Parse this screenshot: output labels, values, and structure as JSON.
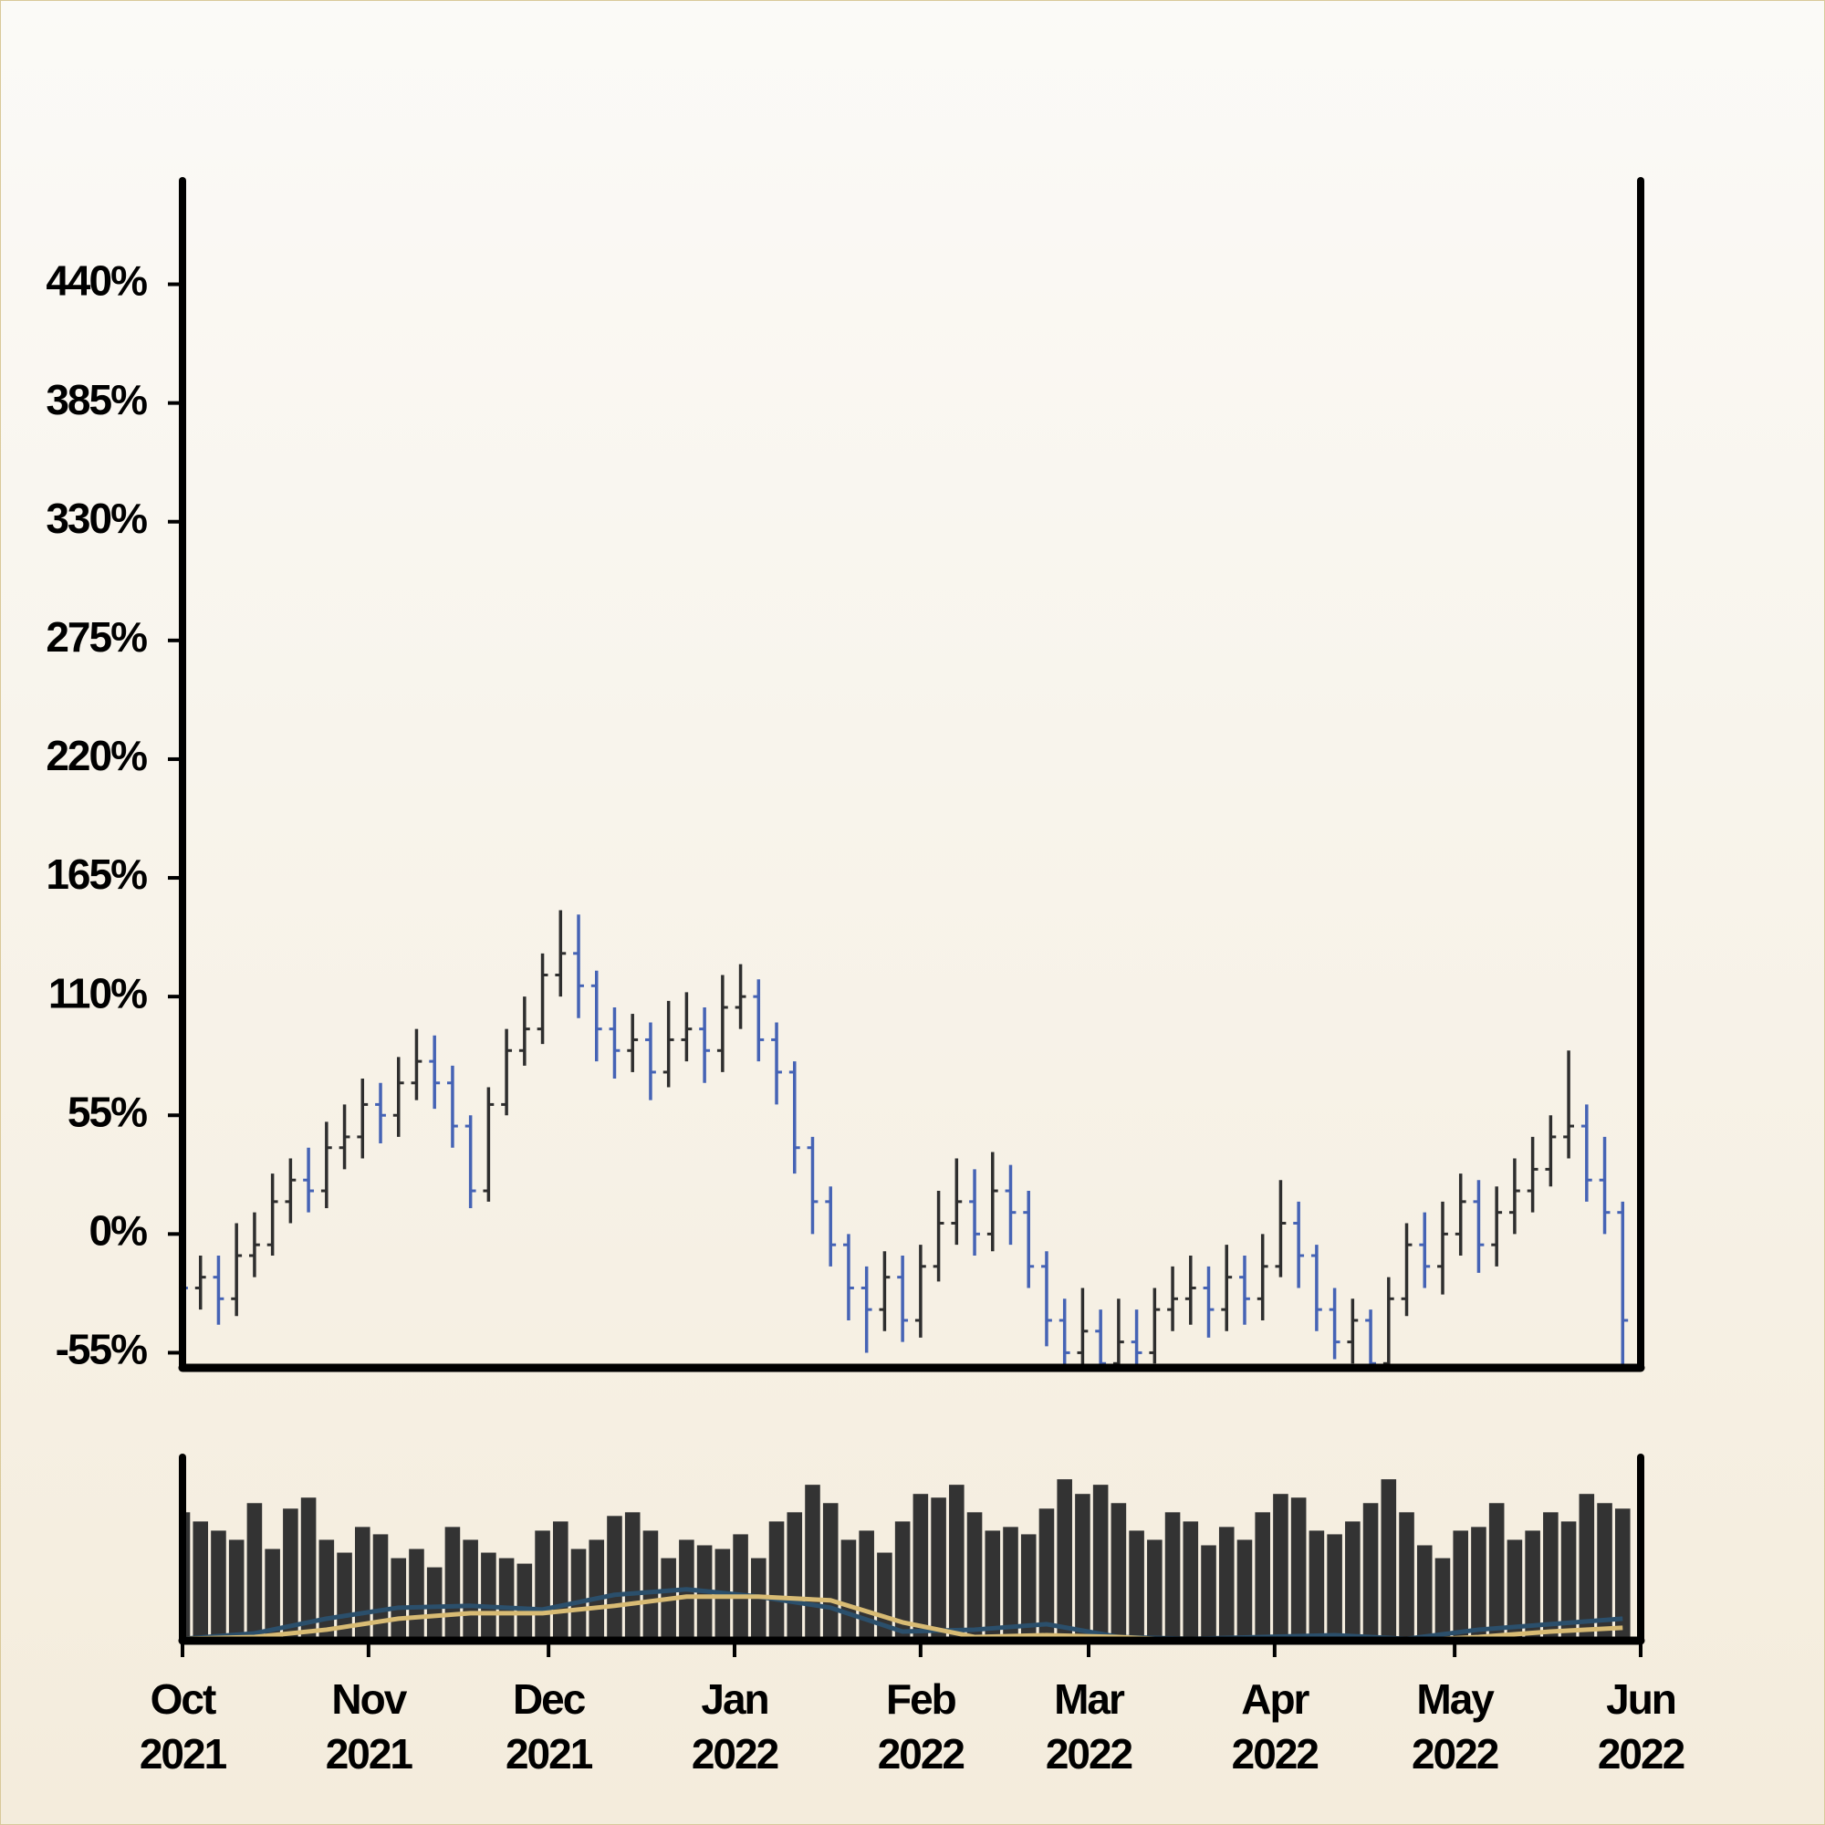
{
  "chart_data": {
    "type": "ohlc",
    "x": [
      0,
      3,
      6,
      9,
      12,
      15,
      18,
      21,
      24,
      27,
      30,
      33,
      36,
      39,
      42,
      45,
      48,
      51,
      54,
      57,
      60,
      63,
      66,
      69,
      72,
      75,
      78,
      81,
      84,
      87,
      90,
      93,
      96,
      99,
      102,
      105,
      108,
      111,
      114,
      117,
      120,
      123,
      126,
      129,
      132,
      135,
      138,
      141,
      144,
      147,
      150,
      153,
      156,
      159,
      162,
      165,
      168,
      171,
      174,
      177,
      180,
      183,
      186,
      189,
      192,
      195,
      198,
      201,
      204,
      207,
      210,
      213,
      216,
      219,
      222,
      225,
      228,
      231,
      234,
      237,
      240
    ],
    "open": [
      -15,
      -25,
      -20,
      -30,
      -10,
      -5,
      15,
      25,
      20,
      40,
      45,
      60,
      55,
      70,
      80,
      70,
      50,
      20,
      60,
      85,
      95,
      120,
      130,
      115,
      95,
      85,
      90,
      75,
      90,
      95,
      85,
      105,
      110,
      90,
      75,
      40,
      15,
      -5,
      -25,
      -35,
      -20,
      -40,
      -15,
      5,
      15,
      0,
      20,
      10,
      -15,
      -40,
      -55,
      -45,
      -60,
      -50,
      -55,
      -35,
      -30,
      -25,
      -35,
      -20,
      -30,
      -15,
      5,
      -10,
      -35,
      -50,
      -40,
      -60,
      -30,
      -5,
      -15,
      0,
      15,
      -5,
      10,
      20,
      30,
      45,
      50,
      25,
      10
    ],
    "high": [
      -3,
      -10,
      -10,
      5,
      10,
      28,
      35,
      40,
      52,
      60,
      72,
      70,
      82,
      95,
      92,
      78,
      55,
      68,
      95,
      110,
      130,
      150,
      148,
      122,
      105,
      102,
      98,
      108,
      112,
      105,
      120,
      125,
      118,
      98,
      80,
      45,
      22,
      0,
      -15,
      -8,
      -10,
      -5,
      20,
      35,
      30,
      38,
      32,
      20,
      -8,
      -30,
      -25,
      -35,
      -30,
      -35,
      -25,
      -15,
      -10,
      -15,
      -5,
      -10,
      0,
      25,
      15,
      -5,
      -25,
      -30,
      -35,
      -20,
      5,
      10,
      15,
      28,
      25,
      22,
      35,
      45,
      55,
      85,
      60,
      45,
      15
    ],
    "low": [
      -40,
      -35,
      -42,
      -38,
      -20,
      -10,
      5,
      10,
      12,
      30,
      35,
      42,
      45,
      62,
      58,
      40,
      12,
      15,
      55,
      78,
      88,
      110,
      100,
      80,
      72,
      75,
      62,
      68,
      80,
      70,
      75,
      95,
      80,
      60,
      28,
      0,
      -15,
      -40,
      -55,
      -45,
      -50,
      -48,
      -22,
      -5,
      -10,
      -8,
      -5,
      -25,
      -52,
      -62,
      -62,
      -62,
      -62,
      -62,
      -60,
      -45,
      -42,
      -48,
      -45,
      -42,
      -40,
      -20,
      -25,
      -45,
      -58,
      -60,
      -62,
      -62,
      -38,
      -25,
      -28,
      -10,
      -18,
      -15,
      0,
      10,
      22,
      35,
      15,
      0,
      -62
    ],
    "close": [
      -25,
      -20,
      -30,
      -10,
      -5,
      15,
      25,
      20,
      40,
      45,
      60,
      55,
      70,
      80,
      70,
      50,
      20,
      60,
      85,
      95,
      120,
      130,
      115,
      95,
      85,
      90,
      75,
      90,
      95,
      85,
      105,
      110,
      90,
      75,
      40,
      15,
      -5,
      -25,
      -35,
      -20,
      -40,
      -15,
      5,
      15,
      0,
      20,
      10,
      -15,
      -40,
      -55,
      -45,
      -60,
      -50,
      -55,
      -35,
      -30,
      -25,
      -35,
      -20,
      -30,
      -15,
      5,
      -10,
      -35,
      -50,
      -40,
      -60,
      -30,
      -5,
      -15,
      0,
      15,
      -5,
      10,
      20,
      30,
      45,
      50,
      25,
      10,
      -40
    ],
    "up_color": "#2e2e2e",
    "down_color": "#4563b5",
    "xlim": [
      0,
      243
    ],
    "xticks": [
      {
        "value": 0,
        "label": "Oct 2021"
      },
      {
        "value": 31,
        "label": "Nov 2021"
      },
      {
        "value": 61,
        "label": "Dec 2021"
      },
      {
        "value": 92,
        "label": "Jan 2022"
      },
      {
        "value": 123,
        "label": "Feb 2022"
      },
      {
        "value": 151,
        "label": "Mar 2022"
      },
      {
        "value": 182,
        "label": "Apr 2022"
      },
      {
        "value": 212,
        "label": "May 2022"
      },
      {
        "value": 243,
        "label": "Jun 2022"
      }
    ],
    "ylim": [
      -62,
      488
    ],
    "yticks": [
      {
        "value": -55,
        "label": "-55%"
      },
      {
        "value": 0,
        "label": "0%"
      },
      {
        "value": 55,
        "label": "55%"
      },
      {
        "value": 110,
        "label": "110%"
      },
      {
        "value": 165,
        "label": "165%"
      },
      {
        "value": 220,
        "label": "220%"
      },
      {
        "value": 275,
        "label": "275%"
      },
      {
        "value": 330,
        "label": "330%"
      },
      {
        "value": 385,
        "label": "385%"
      },
      {
        "value": 440,
        "label": "440%"
      }
    ],
    "volume": {
      "color": "#333333",
      "ylim": [
        0,
        100
      ],
      "values": [
        70,
        65,
        60,
        55,
        75,
        50,
        72,
        78,
        55,
        48,
        62,
        58,
        45,
        50,
        40,
        62,
        55,
        48,
        45,
        42,
        60,
        65,
        50,
        55,
        68,
        70,
        60,
        45,
        55,
        52,
        50,
        58,
        45,
        65,
        70,
        85,
        75,
        55,
        60,
        48,
        65,
        80,
        78,
        85,
        70,
        60,
        62,
        58,
        72,
        88,
        80,
        85,
        75,
        60,
        55,
        70,
        65,
        52,
        62,
        55,
        70,
        80,
        78,
        60,
        58,
        65,
        75,
        88,
        70,
        52,
        45,
        60,
        62,
        75,
        55,
        60,
        70,
        65,
        80,
        75,
        72
      ]
    },
    "moving_averages": [
      {
        "color": "#2b4f6b",
        "x": [
          0,
          12,
          24,
          36,
          48,
          60,
          72,
          84,
          96,
          108,
          120,
          132,
          144,
          156,
          168,
          180,
          192,
          204,
          216,
          228,
          240
        ],
        "values": [
          1,
          4,
          12,
          18,
          19,
          17,
          25,
          28,
          24,
          18,
          5,
          6,
          9,
          2,
          1,
          2,
          3,
          1,
          6,
          9,
          12
        ]
      },
      {
        "color": "#d8bb74",
        "x": [
          0,
          12,
          24,
          36,
          48,
          60,
          72,
          84,
          96,
          108,
          120,
          132,
          144,
          156,
          168,
          180,
          192,
          204,
          216,
          228,
          240
        ],
        "values": [
          1,
          2,
          6,
          12,
          15,
          15,
          19,
          24,
          24,
          22,
          10,
          2,
          3,
          2,
          0,
          0,
          1,
          0,
          2,
          5,
          7
        ]
      }
    ]
  }
}
